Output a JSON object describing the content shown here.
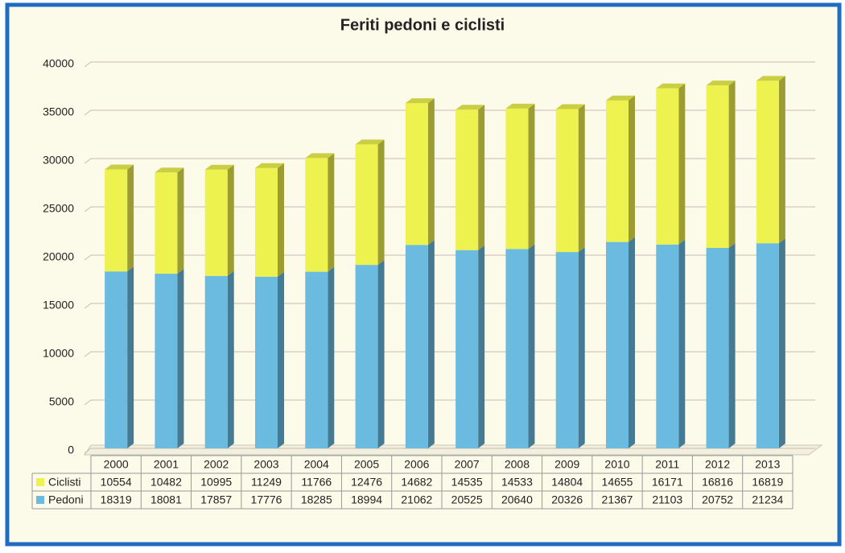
{
  "chart_data": {
    "type": "bar",
    "title": "Feriti pedoni e ciclisti",
    "categories": [
      "2000",
      "2001",
      "2002",
      "2003",
      "2004",
      "2005",
      "2006",
      "2007",
      "2008",
      "2009",
      "2010",
      "2011",
      "2012",
      "2013"
    ],
    "series": [
      {
        "name": "Ciclisti",
        "color": "#eef24e",
        "values": [
          10554,
          10482,
          10995,
          11249,
          11766,
          12476,
          14682,
          14535,
          14533,
          14804,
          14655,
          16171,
          16816,
          16819
        ]
      },
      {
        "name": "Pedoni",
        "color": "#6bbbe0",
        "values": [
          18319,
          18081,
          17857,
          17776,
          18285,
          18994,
          21062,
          20525,
          20640,
          20326,
          21367,
          21103,
          20752,
          21234
        ]
      }
    ],
    "stacked": true,
    "ylim": [
      0,
      40000
    ],
    "yticks": [
      0,
      5000,
      10000,
      15000,
      20000,
      25000,
      30000,
      35000,
      40000
    ],
    "grid": true
  }
}
